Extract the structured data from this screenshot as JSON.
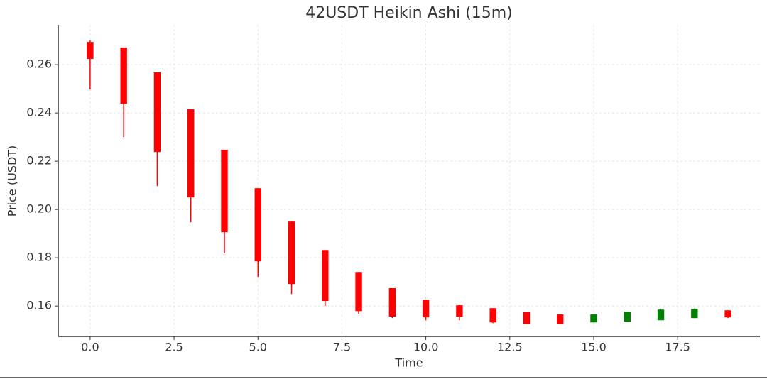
{
  "chart_data": {
    "type": "candlestick",
    "title": "42USDT Heikin Ashi (15m)",
    "x_label": "Time",
    "y_label": "Price (USDT)",
    "x": [
      0,
      1,
      2,
      3,
      4,
      5,
      6,
      7,
      8,
      9,
      10,
      11,
      12,
      13,
      14,
      15,
      16,
      17,
      18,
      19
    ],
    "open": [
      0.2694,
      0.2671,
      0.2568,
      0.2415,
      0.2247,
      0.2088,
      0.195,
      0.1832,
      0.1741,
      0.1674,
      0.1626,
      0.1603,
      0.1591,
      0.1574,
      0.1565,
      0.1532,
      0.1535,
      0.1541,
      0.155,
      0.1582
    ],
    "high": [
      0.27,
      0.2671,
      0.2568,
      0.2415,
      0.2247,
      0.2088,
      0.195,
      0.1832,
      0.1741,
      0.1674,
      0.1626,
      0.1603,
      0.1591,
      0.1574,
      0.1565,
      0.1565,
      0.1576,
      0.1588,
      0.159,
      0.1582
    ],
    "low": [
      0.2497,
      0.23,
      0.2097,
      0.1947,
      0.1818,
      0.1721,
      0.165,
      0.16,
      0.1568,
      0.155,
      0.1541,
      0.1541,
      0.1529,
      0.1526,
      0.1526,
      0.1532,
      0.1535,
      0.1541,
      0.155,
      0.155
    ],
    "close": [
      0.2624,
      0.2438,
      0.2238,
      0.205,
      0.1906,
      0.1785,
      0.1691,
      0.1621,
      0.1579,
      0.1556,
      0.1553,
      0.1556,
      0.1532,
      0.1526,
      0.1526,
      0.1565,
      0.1576,
      0.1585,
      0.1588,
      0.1553
    ],
    "up_color": "green",
    "down_color": "red",
    "xlim": [
      -0.95,
      19.95
    ],
    "ylim": [
      0.1474,
      0.2765
    ],
    "xticks": [
      {
        "value": 0,
        "label": "0.0"
      },
      2.5,
      {
        "value": 5,
        "label": "5.0"
      },
      7.5,
      {
        "value": 10,
        "label": "10.0"
      },
      12.5,
      {
        "value": 15,
        "label": "15.0"
      },
      17.5
    ],
    "yticks": [
      0.16,
      0.18,
      {
        "value": 0.2,
        "label": "0.20"
      },
      0.22,
      0.24,
      0.26
    ],
    "grid": true
  }
}
